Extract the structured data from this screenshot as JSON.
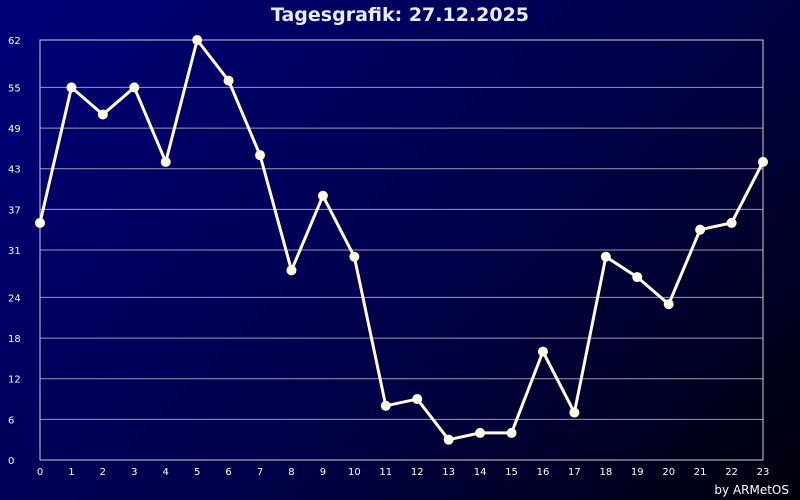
{
  "title": "Tagesgrafik: 27.12.2025",
  "credit": "by ARMetOS",
  "colors": {
    "line": "#fffbe6",
    "grid": "#9a9ab8",
    "frame": "#d0d0d8"
  },
  "chart_data": {
    "type": "line",
    "title": "Tagesgrafik: 27.12.2025",
    "xlabel": "",
    "ylabel": "",
    "x": [
      0,
      1,
      2,
      3,
      4,
      5,
      6,
      7,
      8,
      9,
      10,
      11,
      12,
      13,
      14,
      15,
      16,
      17,
      18,
      19,
      20,
      21,
      22,
      23
    ],
    "series": [
      {
        "values": [
          35,
          55,
          51,
          55,
          44,
          62,
          56,
          45,
          28,
          39,
          30,
          8,
          9,
          3,
          4,
          4,
          16,
          7,
          30,
          27,
          23,
          34,
          35,
          44
        ]
      }
    ],
    "xlim": [
      0,
      23
    ],
    "ylim": [
      0,
      62
    ],
    "yticks": [
      0,
      6,
      12,
      18,
      24,
      31,
      37,
      43,
      49,
      55,
      62
    ],
    "xticks": [
      0,
      1,
      2,
      3,
      4,
      5,
      6,
      7,
      8,
      9,
      10,
      11,
      12,
      13,
      14,
      15,
      16,
      17,
      18,
      19,
      20,
      21,
      22,
      23
    ],
    "grid": true,
    "legend": "none"
  }
}
